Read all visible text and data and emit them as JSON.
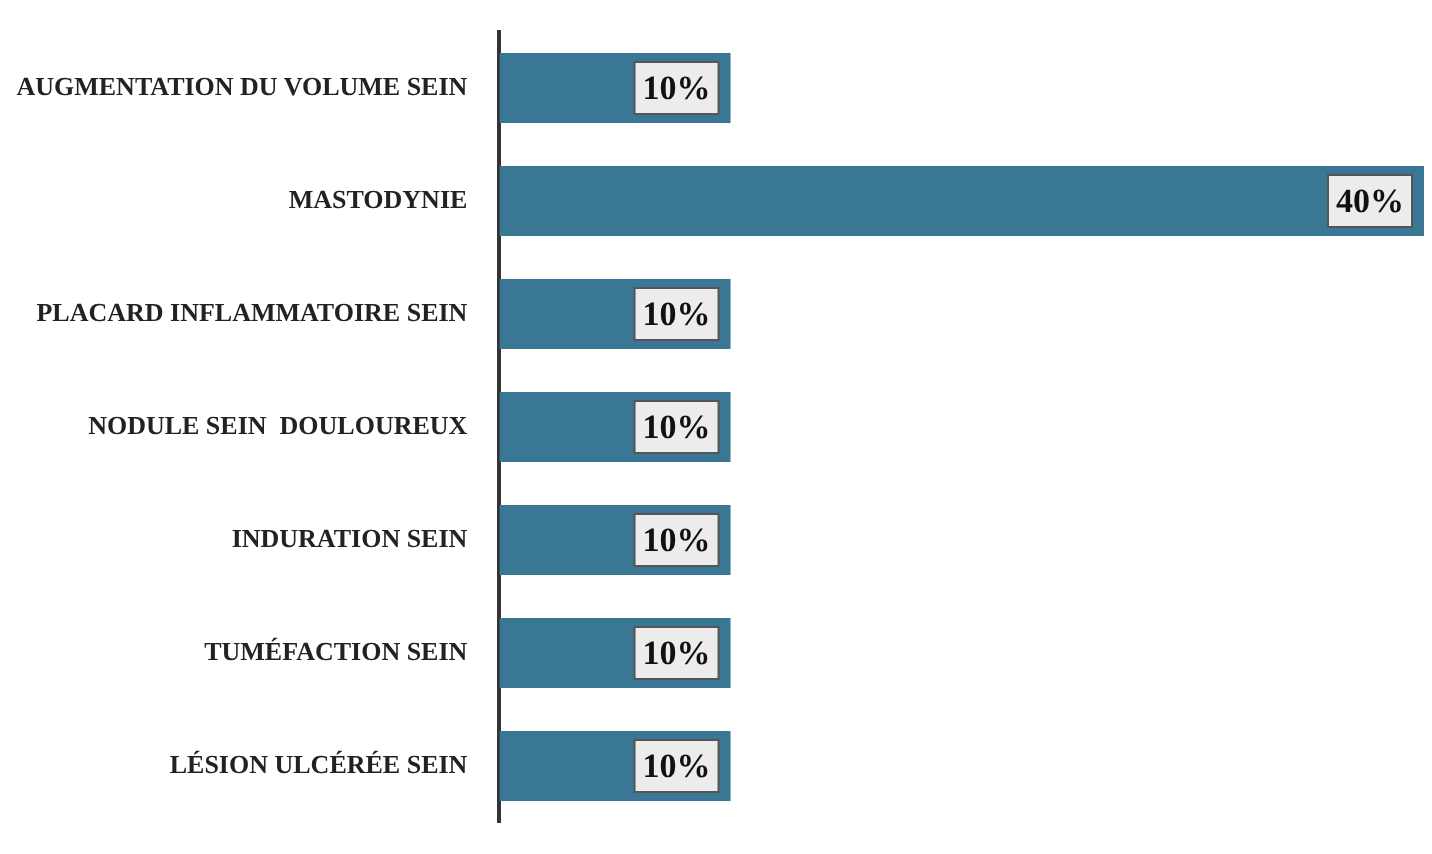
{
  "chart_data": {
    "type": "bar",
    "orientation": "horizontal",
    "categories": [
      "AUGMENTATION DU VOLUME SEIN",
      "MASTODYNIE",
      "PLACARD INFLAMMATOIRE SEIN",
      "NODULE SEIN  DOULOUREUX",
      "INDURATION SEIN",
      "TUMÉFACTION SEIN",
      "LÉSION ULCÉRÉE SEIN"
    ],
    "values": [
      10,
      40,
      10,
      10,
      10,
      10,
      10
    ],
    "value_labels": [
      "10%",
      "40%",
      "10%",
      "10%",
      "10%",
      "10%",
      "10%"
    ],
    "color": "#3a7795"
  }
}
